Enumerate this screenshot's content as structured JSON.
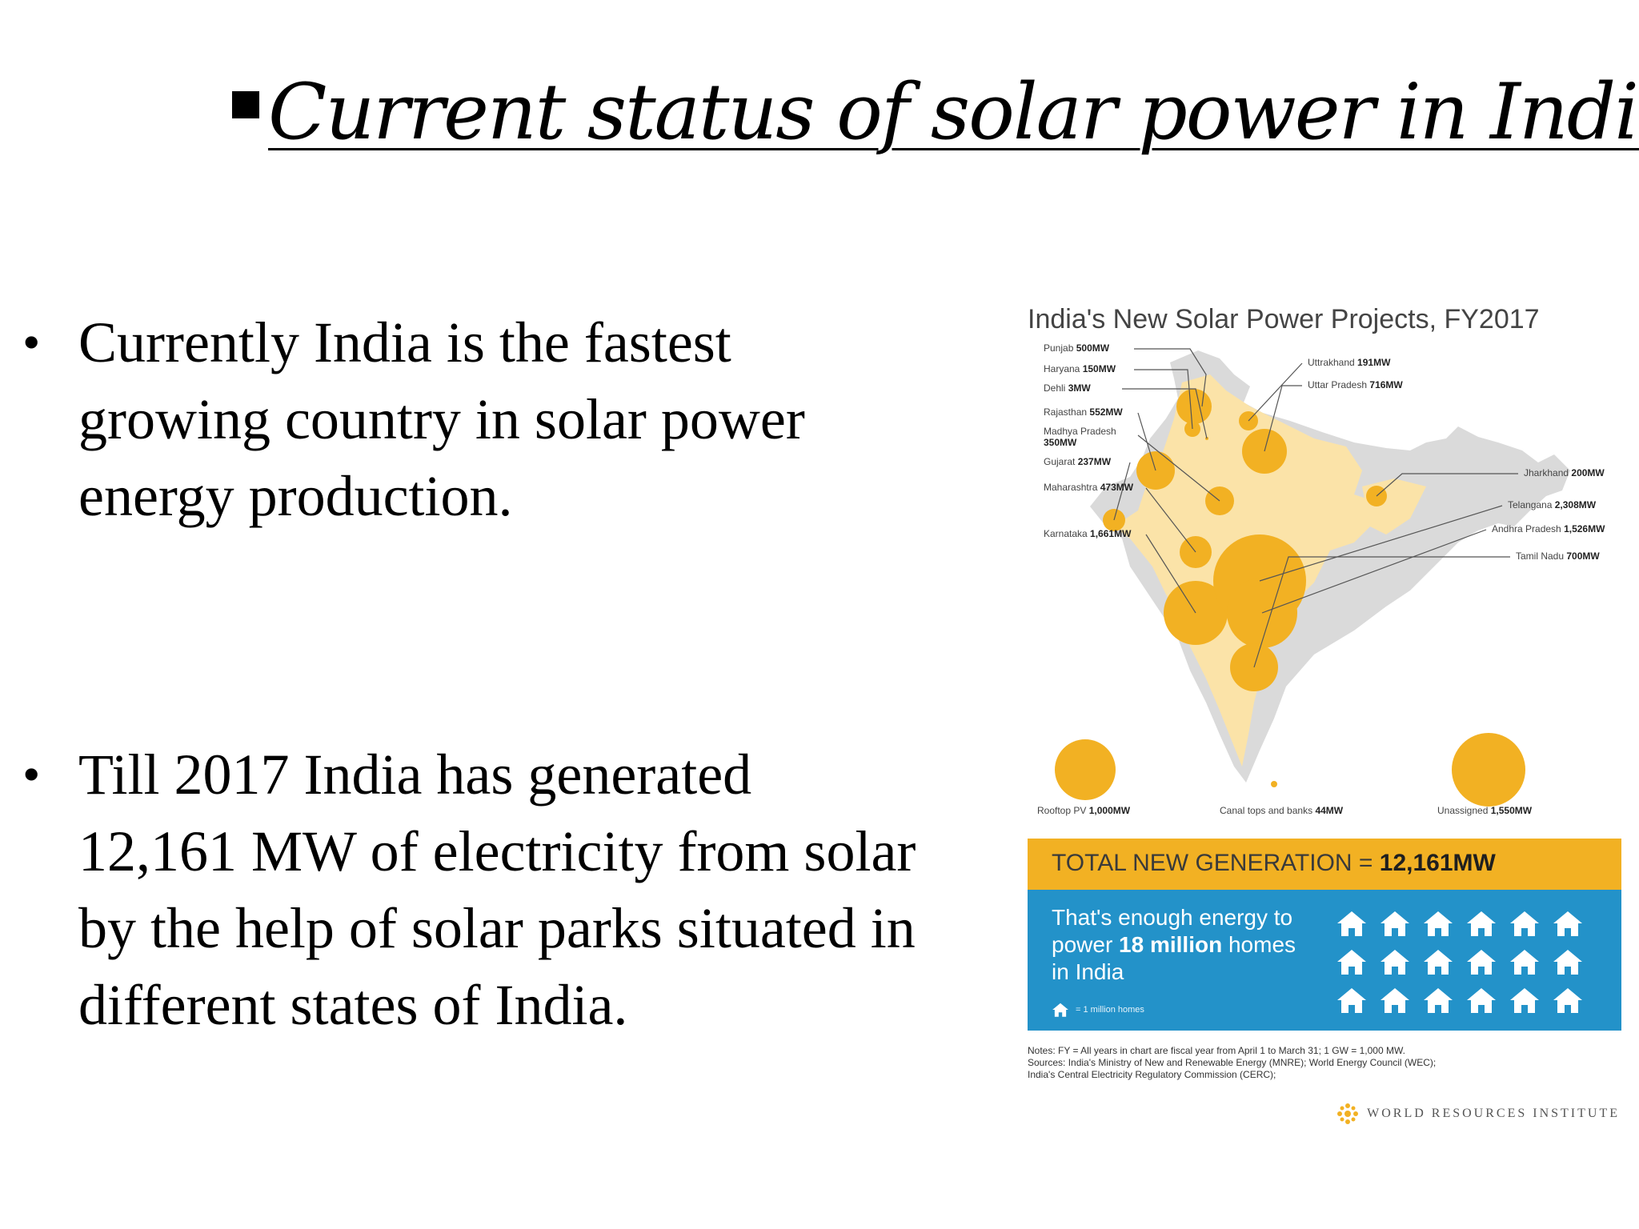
{
  "slide": {
    "title": "Current status of solar power in India",
    "bullets": [
      "Currently India is the fastest growing country in solar power energy production.",
      "Till 2017 India has generated 12,161 MW of electricity from solar by the help of solar parks situated in different states of India."
    ]
  },
  "infographic": {
    "title": "India's New Solar Power Projects, FY2017",
    "states": [
      {
        "name": "Punjab",
        "value": "500MW"
      },
      {
        "name": "Haryana",
        "value": "150MW"
      },
      {
        "name": "Dehli",
        "value": "3MW"
      },
      {
        "name": "Rajasthan",
        "value": "552MW"
      },
      {
        "name": "Madhya Pradesh",
        "value": "350MW"
      },
      {
        "name": "Gujarat",
        "value": "237MW"
      },
      {
        "name": "Maharashtra",
        "value": "473MW"
      },
      {
        "name": "Karnataka",
        "value": "1,661MW"
      },
      {
        "name": "Uttrakhand",
        "value": "191MW"
      },
      {
        "name": "Uttar Pradesh",
        "value": "716MW"
      },
      {
        "name": "Jharkhand",
        "value": "200MW"
      },
      {
        "name": "Telangana",
        "value": "2,308MW"
      },
      {
        "name": "Andhra Pradesh",
        "value": "1,526MW"
      },
      {
        "name": "Tamil Nadu",
        "value": "700MW"
      }
    ],
    "other_categories": [
      {
        "name": "Rooftop PV",
        "value": "1,000MW"
      },
      {
        "name": "Canal tops and banks",
        "value": "44MW"
      },
      {
        "name": "Unassigned",
        "value": "1,550MW"
      }
    ],
    "total_label": "TOTAL NEW GENERATION =",
    "total_value": "12,161MW",
    "energy_text_1": "That's enough energy to power",
    "energy_highlight": "18 million",
    "energy_text_2": "homes in India",
    "homes_count": 18,
    "legend_text": "= 1 million homes",
    "notes": [
      "Notes: FY = All years in chart are fiscal year from April 1 to March 31; 1 GW = 1,000 MW.",
      "Sources: India's Ministry of New and Renewable Energy (MNRE); World Energy Council (WEC);",
      "India's Central Electricity Regulatory Commission (CERC);"
    ],
    "source_logo": "WORLD RESOURCES INSTITUTE",
    "colors": {
      "bubble": "#F2B123",
      "map_highlight": "#FBE3A8",
      "map_base": "#DADADA",
      "total_bar": "#F2B123",
      "blue_box": "#2392C9"
    }
  }
}
